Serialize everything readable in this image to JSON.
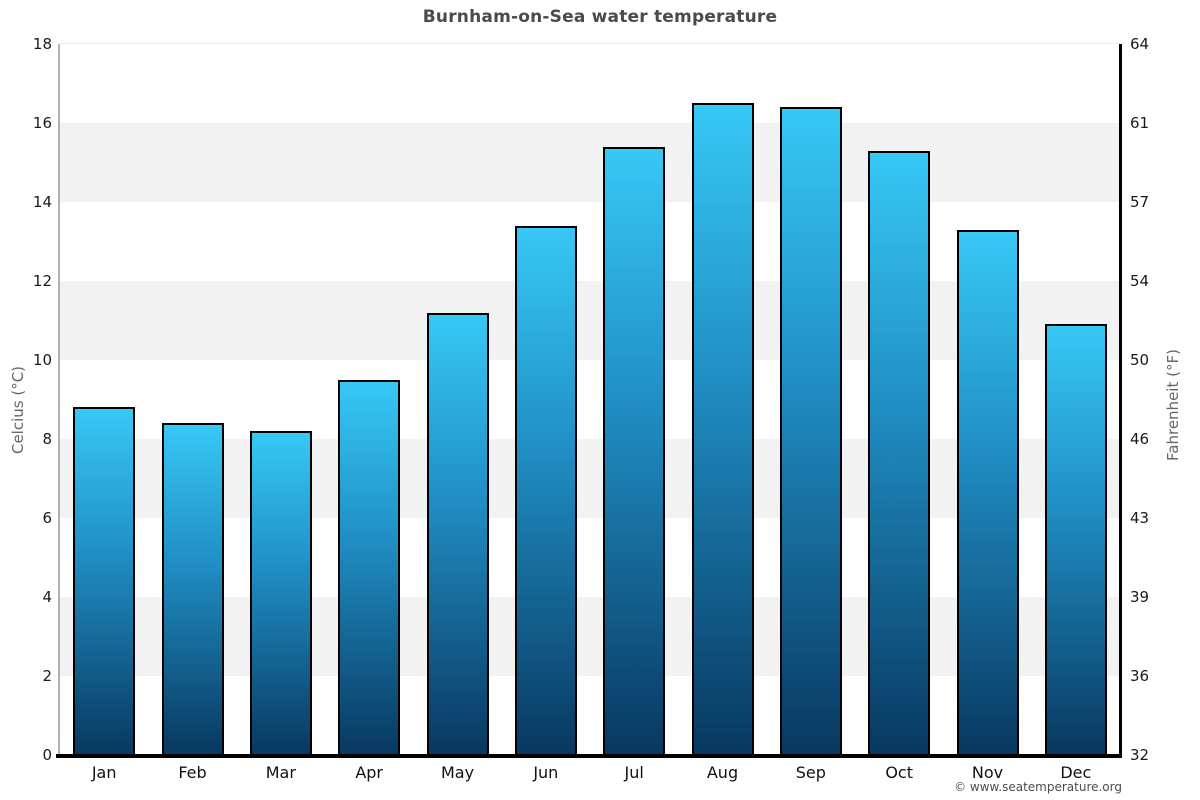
{
  "title": "Burnham-on-Sea water temperature",
  "copyright": "© www.seatemperature.org",
  "colors": {
    "bar_top": "#37c8f5",
    "bar_mid": "#2191c7",
    "bar_bottom": "#083860",
    "bar_border": "#000000",
    "band_gray": "#f2f2f2",
    "title_text": "#4a4a4a",
    "axis_title_text": "#666666"
  },
  "chart_data": {
    "type": "bar",
    "title": "Burnham-on-Sea water temperature",
    "categories": [
      "Jan",
      "Feb",
      "Mar",
      "Apr",
      "May",
      "Jun",
      "Jul",
      "Aug",
      "Sep",
      "Oct",
      "Nov",
      "Dec"
    ],
    "values": [
      8.8,
      8.4,
      8.2,
      9.5,
      11.2,
      13.4,
      15.4,
      16.5,
      16.4,
      15.3,
      13.3,
      10.9
    ],
    "series_unit": "°C",
    "xlabel": "",
    "ylabel_left": "Celcius (°C)",
    "ylabel_right": "Fahrenheit (°F)",
    "ylim": [
      0,
      18
    ],
    "yticks_celsius": [
      18,
      16,
      14,
      12,
      10,
      8,
      6,
      4,
      2,
      0
    ],
    "yticks_fahrenheit": [
      64,
      61,
      57,
      54,
      50,
      46,
      43,
      39,
      36,
      32
    ],
    "grid": "alternating horizontal bands every 2°C",
    "legend": "none",
    "bar_style": "vertical gradient light blue to dark navy, black outline"
  }
}
